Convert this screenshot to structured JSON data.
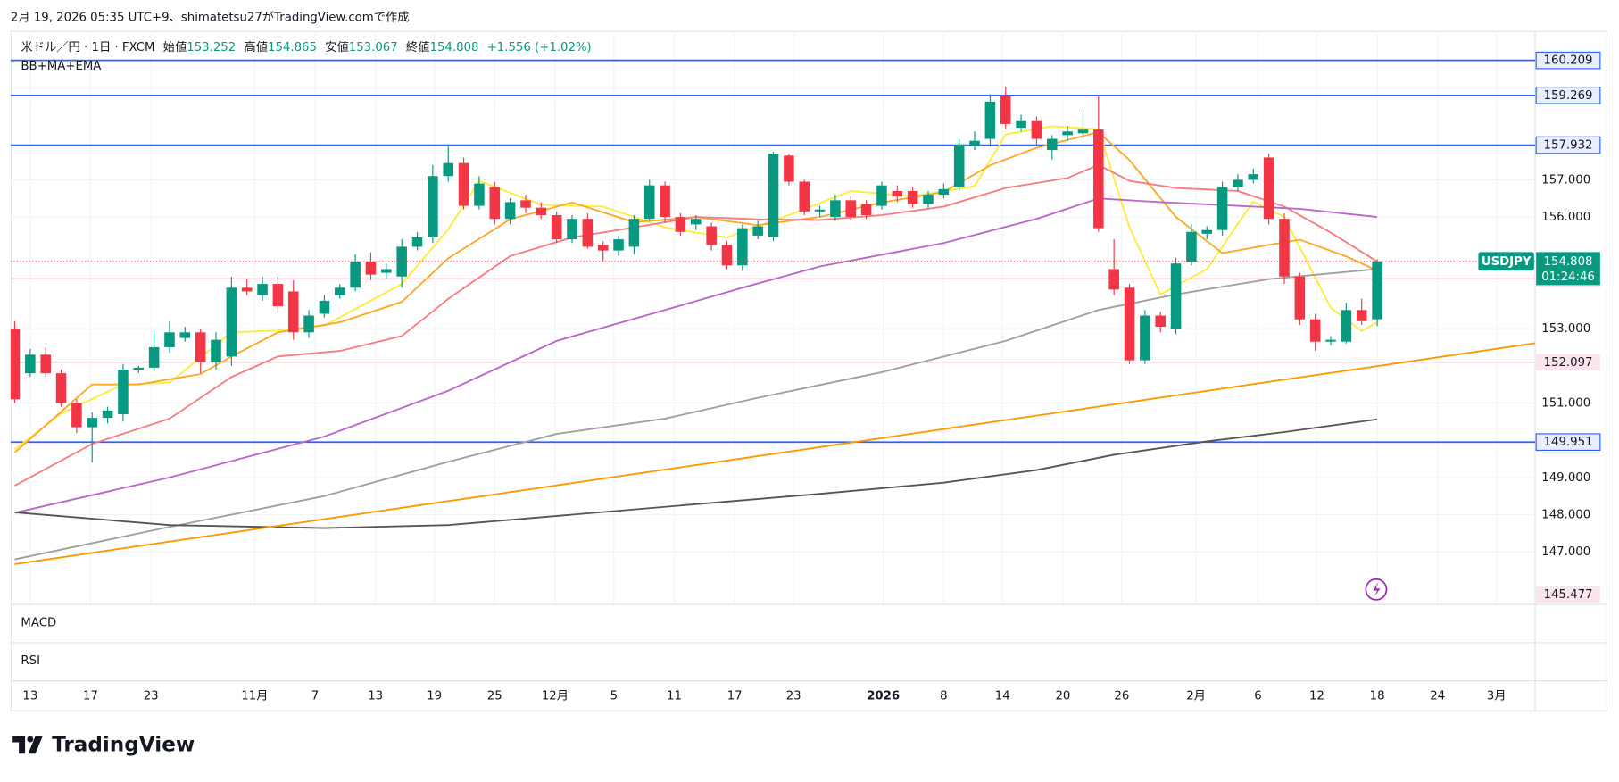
{
  "header": "2月 19, 2026 05:35 UTC+9、shimatetsu27がTradingView.comで作成",
  "footer": {
    "brand": "TradingView"
  },
  "chart_data": {
    "type": "candlestick",
    "symbol_line": "米ドル／円 · 1日 · FXCM",
    "legend": {
      "open_label": "始値",
      "open": "153.252",
      "high_label": "高値",
      "high": "154.865",
      "low_label": "安値",
      "low": "153.067",
      "close_label": "終値",
      "close": "154.808",
      "change": "+1.556 (+1.02%)"
    },
    "indicator_label": "BB+MA+EMA",
    "panes": [
      "MACD",
      "RSI"
    ],
    "up_color": "#089981",
    "down_color": "#f23645",
    "open": [
      153.0,
      151.8,
      152.3,
      151.8,
      151.0,
      150.35,
      150.6,
      150.7,
      151.9,
      151.95,
      152.5,
      152.75,
      152.9,
      152.1,
      152.25,
      154.1,
      153.9,
      154.2,
      154.0,
      152.9,
      153.4,
      153.9,
      154.1,
      154.8,
      154.5,
      154.4,
      155.2,
      155.45,
      157.1,
      157.45,
      156.3,
      156.8,
      155.95,
      156.45,
      156.25,
      156.05,
      155.4,
      155.95,
      155.25,
      155.1,
      155.2,
      155.95,
      156.85,
      156.0,
      155.8,
      155.75,
      155.25,
      154.7,
      155.5,
      155.45,
      157.65,
      156.95,
      156.15,
      156.0,
      156.45,
      156.35,
      156.3,
      156.7,
      156.7,
      156.35,
      156.6,
      156.8,
      157.9,
      158.1,
      159.25,
      158.4,
      158.6,
      157.8,
      158.2,
      158.25,
      158.35,
      154.6,
      154.1,
      152.15,
      153.35,
      153.0,
      154.8,
      155.55,
      155.65,
      156.8,
      157.0,
      157.6,
      155.95,
      154.4,
      153.25,
      152.65,
      152.65,
      153.5,
      153.252
    ],
    "high": [
      153.2,
      152.45,
      152.5,
      151.9,
      151.1,
      150.75,
      150.9,
      152.05,
      152.0,
      152.95,
      153.2,
      153.05,
      153.0,
      152.9,
      154.4,
      154.35,
      154.4,
      154.4,
      154.3,
      153.5,
      153.9,
      154.2,
      155.0,
      155.05,
      154.75,
      155.4,
      155.6,
      157.4,
      157.9,
      157.6,
      157.1,
      156.95,
      156.5,
      156.6,
      156.4,
      156.15,
      156.05,
      156.1,
      155.35,
      155.5,
      156.05,
      157.0,
      156.95,
      156.1,
      156.05,
      155.85,
      155.35,
      155.8,
      155.9,
      157.75,
      157.7,
      157.0,
      156.3,
      156.6,
      156.55,
      156.45,
      156.95,
      156.85,
      156.8,
      156.7,
      156.9,
      158.1,
      158.3,
      159.3,
      159.5,
      158.75,
      158.7,
      158.2,
      158.45,
      158.9,
      159.25,
      155.4,
      154.2,
      153.5,
      153.45,
      154.9,
      155.8,
      155.75,
      156.95,
      157.15,
      157.3,
      157.7,
      156.1,
      154.5,
      153.4,
      152.8,
      153.7,
      153.8,
      154.865
    ],
    "low": [
      151.0,
      151.7,
      151.7,
      150.9,
      150.2,
      149.4,
      150.45,
      150.5,
      151.8,
      151.85,
      152.35,
      152.65,
      151.8,
      151.9,
      152.0,
      153.9,
      153.75,
      153.4,
      152.7,
      152.75,
      153.3,
      153.8,
      154.0,
      154.3,
      154.35,
      154.1,
      155.1,
      155.3,
      156.95,
      156.2,
      156.2,
      155.8,
      155.8,
      156.1,
      155.95,
      155.3,
      155.3,
      155.15,
      154.8,
      154.95,
      155.0,
      155.9,
      155.85,
      155.5,
      155.65,
      155.1,
      154.6,
      154.55,
      155.4,
      155.35,
      156.85,
      156.05,
      156.0,
      155.9,
      155.9,
      155.95,
      156.2,
      156.4,
      156.25,
      156.25,
      156.5,
      156.7,
      157.8,
      157.9,
      158.35,
      158.3,
      157.9,
      157.55,
      158.05,
      158.1,
      155.6,
      153.9,
      152.05,
      152.05,
      152.9,
      152.85,
      154.7,
      155.4,
      155.5,
      156.7,
      156.9,
      155.8,
      154.2,
      153.1,
      152.4,
      152.55,
      152.6,
      153.1,
      153.067
    ],
    "close": [
      151.1,
      152.3,
      151.8,
      151.0,
      150.35,
      150.6,
      150.8,
      151.9,
      151.95,
      152.5,
      152.9,
      152.9,
      152.1,
      152.7,
      154.1,
      154.0,
      154.2,
      153.6,
      152.9,
      153.35,
      153.75,
      154.1,
      154.8,
      154.45,
      154.6,
      155.2,
      155.45,
      157.1,
      157.45,
      156.3,
      156.9,
      155.95,
      156.4,
      156.25,
      156.05,
      155.4,
      155.95,
      155.2,
      155.1,
      155.4,
      155.95,
      156.85,
      156.0,
      155.6,
      155.95,
      155.25,
      154.7,
      155.7,
      155.75,
      157.7,
      156.95,
      156.15,
      156.2,
      156.45,
      156.0,
      156.05,
      156.85,
      156.55,
      156.35,
      156.6,
      156.75,
      157.95,
      158.05,
      159.1,
      158.5,
      158.6,
      158.1,
      158.1,
      158.3,
      158.35,
      155.7,
      154.05,
      152.15,
      153.35,
      153.05,
      154.75,
      155.6,
      155.65,
      156.8,
      157.0,
      157.15,
      155.95,
      154.4,
      153.25,
      152.65,
      152.7,
      153.5,
      153.2,
      154.808
    ],
    "lines": [
      {
        "color": "#ffeb3b",
        "x": [
          0,
          3,
          7,
          10,
          14,
          17,
          20,
          25,
          28,
          30,
          34,
          38,
          42,
          46,
          50,
          54,
          58,
          62,
          64,
          67,
          70,
          72,
          74,
          77,
          80,
          82,
          85,
          87,
          88
        ],
        "values": [
          149.75,
          150.72,
          151.5,
          151.55,
          152.9,
          152.95,
          153.08,
          154.2,
          155.67,
          156.97,
          156.33,
          156.28,
          155.72,
          155.45,
          156.05,
          156.7,
          156.56,
          156.83,
          158.22,
          158.44,
          158.36,
          155.72,
          153.92,
          154.6,
          156.42,
          156.0,
          153.56,
          152.94,
          153.17
        ]
      },
      {
        "color": "#ffa726",
        "x": [
          0,
          5,
          8,
          12,
          14,
          17,
          21,
          25,
          28,
          32,
          36,
          40,
          44,
          48,
          52,
          56,
          60,
          63,
          66,
          70,
          72,
          75,
          78,
          81,
          83,
          86,
          88
        ],
        "values": [
          149.67,
          151.5,
          151.5,
          151.78,
          152.25,
          152.9,
          153.17,
          153.72,
          154.89,
          155.94,
          156.39,
          155.86,
          156.0,
          155.78,
          156.0,
          156.39,
          156.67,
          157.39,
          157.86,
          158.28,
          157.53,
          156.0,
          155.03,
          155.25,
          155.39,
          154.94,
          154.56
        ]
      },
      {
        "color": "#f77c80",
        "x": [
          0,
          5,
          10,
          14,
          17,
          21,
          25,
          28,
          32,
          36,
          40,
          44,
          48,
          52,
          56,
          60,
          64,
          68,
          70,
          72,
          75,
          79,
          82,
          85,
          88
        ],
        "values": [
          148.78,
          149.9,
          150.58,
          151.7,
          152.25,
          152.4,
          152.8,
          153.8,
          154.95,
          155.45,
          155.72,
          156.0,
          155.94,
          155.92,
          156.05,
          156.28,
          156.78,
          157.05,
          157.4,
          156.97,
          156.78,
          156.7,
          156.28,
          155.58,
          154.8
        ]
      },
      {
        "color": "#ba68c8",
        "x": [
          0,
          10,
          20,
          28,
          35,
          42,
          47,
          52,
          60,
          66,
          70,
          74,
          79,
          83,
          88
        ],
        "values": [
          148.05,
          149.0,
          150.1,
          151.33,
          152.67,
          153.5,
          154.1,
          154.67,
          155.3,
          155.95,
          156.5,
          156.4,
          156.3,
          156.22,
          156.0
        ]
      },
      {
        "color": "#a0a0a0",
        "x": [
          0,
          10,
          20,
          28,
          35,
          42,
          48,
          56,
          64,
          70,
          75,
          81,
          88
        ],
        "values": [
          146.8,
          147.67,
          148.5,
          149.42,
          150.17,
          150.58,
          151.14,
          151.83,
          152.67,
          153.5,
          153.92,
          154.33,
          154.6
        ]
      },
      {
        "color": "#555555",
        "x": [
          0,
          10,
          20,
          28,
          36,
          44,
          52,
          60,
          66,
          71,
          77,
          82,
          88
        ],
        "values": [
          148.06,
          147.72,
          147.64,
          147.72,
          148.0,
          148.28,
          148.56,
          148.86,
          149.2,
          149.61,
          149.97,
          150.22,
          150.56
        ]
      },
      {
        "color": "#ff9800",
        "x": [
          0,
          98.2
        ],
        "values": [
          146.67,
          152.61
        ]
      }
    ],
    "levels": [
      {
        "value": 160.209,
        "color": "#2962ff",
        "style": "blue"
      },
      {
        "value": 159.269,
        "color": "#2962ff",
        "style": "blue"
      },
      {
        "value": 157.932,
        "color": "#2962ff",
        "style": "blue"
      },
      {
        "value": 154.343,
        "color": "#f8bbd0",
        "style": "pink"
      },
      {
        "value": 152.097,
        "color": "#f8bbd0",
        "style": "pink"
      },
      {
        "value": 149.951,
        "color": "#2962ff",
        "style": "blue"
      },
      {
        "value": 145.477,
        "color": "#f8bbd0",
        "style": "pink"
      }
    ],
    "last_price": {
      "symbol": "USDJPY",
      "value": 154.808,
      "countdown": "01:24:46"
    },
    "ylim": [
      145.6,
      161.0
    ],
    "yticks": [
      {
        "value": 147,
        "label": "147.000"
      },
      {
        "value": 148,
        "label": "148.000"
      },
      {
        "value": 149,
        "label": "149.000"
      },
      {
        "value": 151,
        "label": "151.000"
      },
      {
        "value": 153,
        "label": "153.000"
      },
      {
        "value": 156,
        "label": "156.000"
      },
      {
        "value": 157,
        "label": "157.000"
      }
    ],
    "xticks": [
      {
        "value": 1,
        "label": "13"
      },
      {
        "value": 4.9,
        "label": "17"
      },
      {
        "value": 8.8,
        "label": "23"
      },
      {
        "value": 15.5,
        "label": "11月"
      },
      {
        "value": 19.4,
        "label": "7"
      },
      {
        "value": 23.3,
        "label": "13"
      },
      {
        "value": 27.1,
        "label": "19"
      },
      {
        "value": 31,
        "label": "25"
      },
      {
        "value": 34.9,
        "label": "12月"
      },
      {
        "value": 38.7,
        "label": "5"
      },
      {
        "value": 42.6,
        "label": "11"
      },
      {
        "value": 46.5,
        "label": "17"
      },
      {
        "value": 50.3,
        "label": "23"
      },
      {
        "value": 56.1,
        "label": "2026"
      },
      {
        "value": 60,
        "label": "8"
      },
      {
        "value": 63.8,
        "label": "14"
      },
      {
        "value": 67.7,
        "label": "20"
      },
      {
        "value": 71.5,
        "label": "26"
      },
      {
        "value": 76.3,
        "label": "2月"
      },
      {
        "value": 80.3,
        "label": "6"
      },
      {
        "value": 84.1,
        "label": "12"
      },
      {
        "value": 88,
        "label": "18"
      },
      {
        "value": 91.9,
        "label": "24"
      },
      {
        "value": 95.7,
        "label": "3月"
      }
    ],
    "grid": true
  }
}
